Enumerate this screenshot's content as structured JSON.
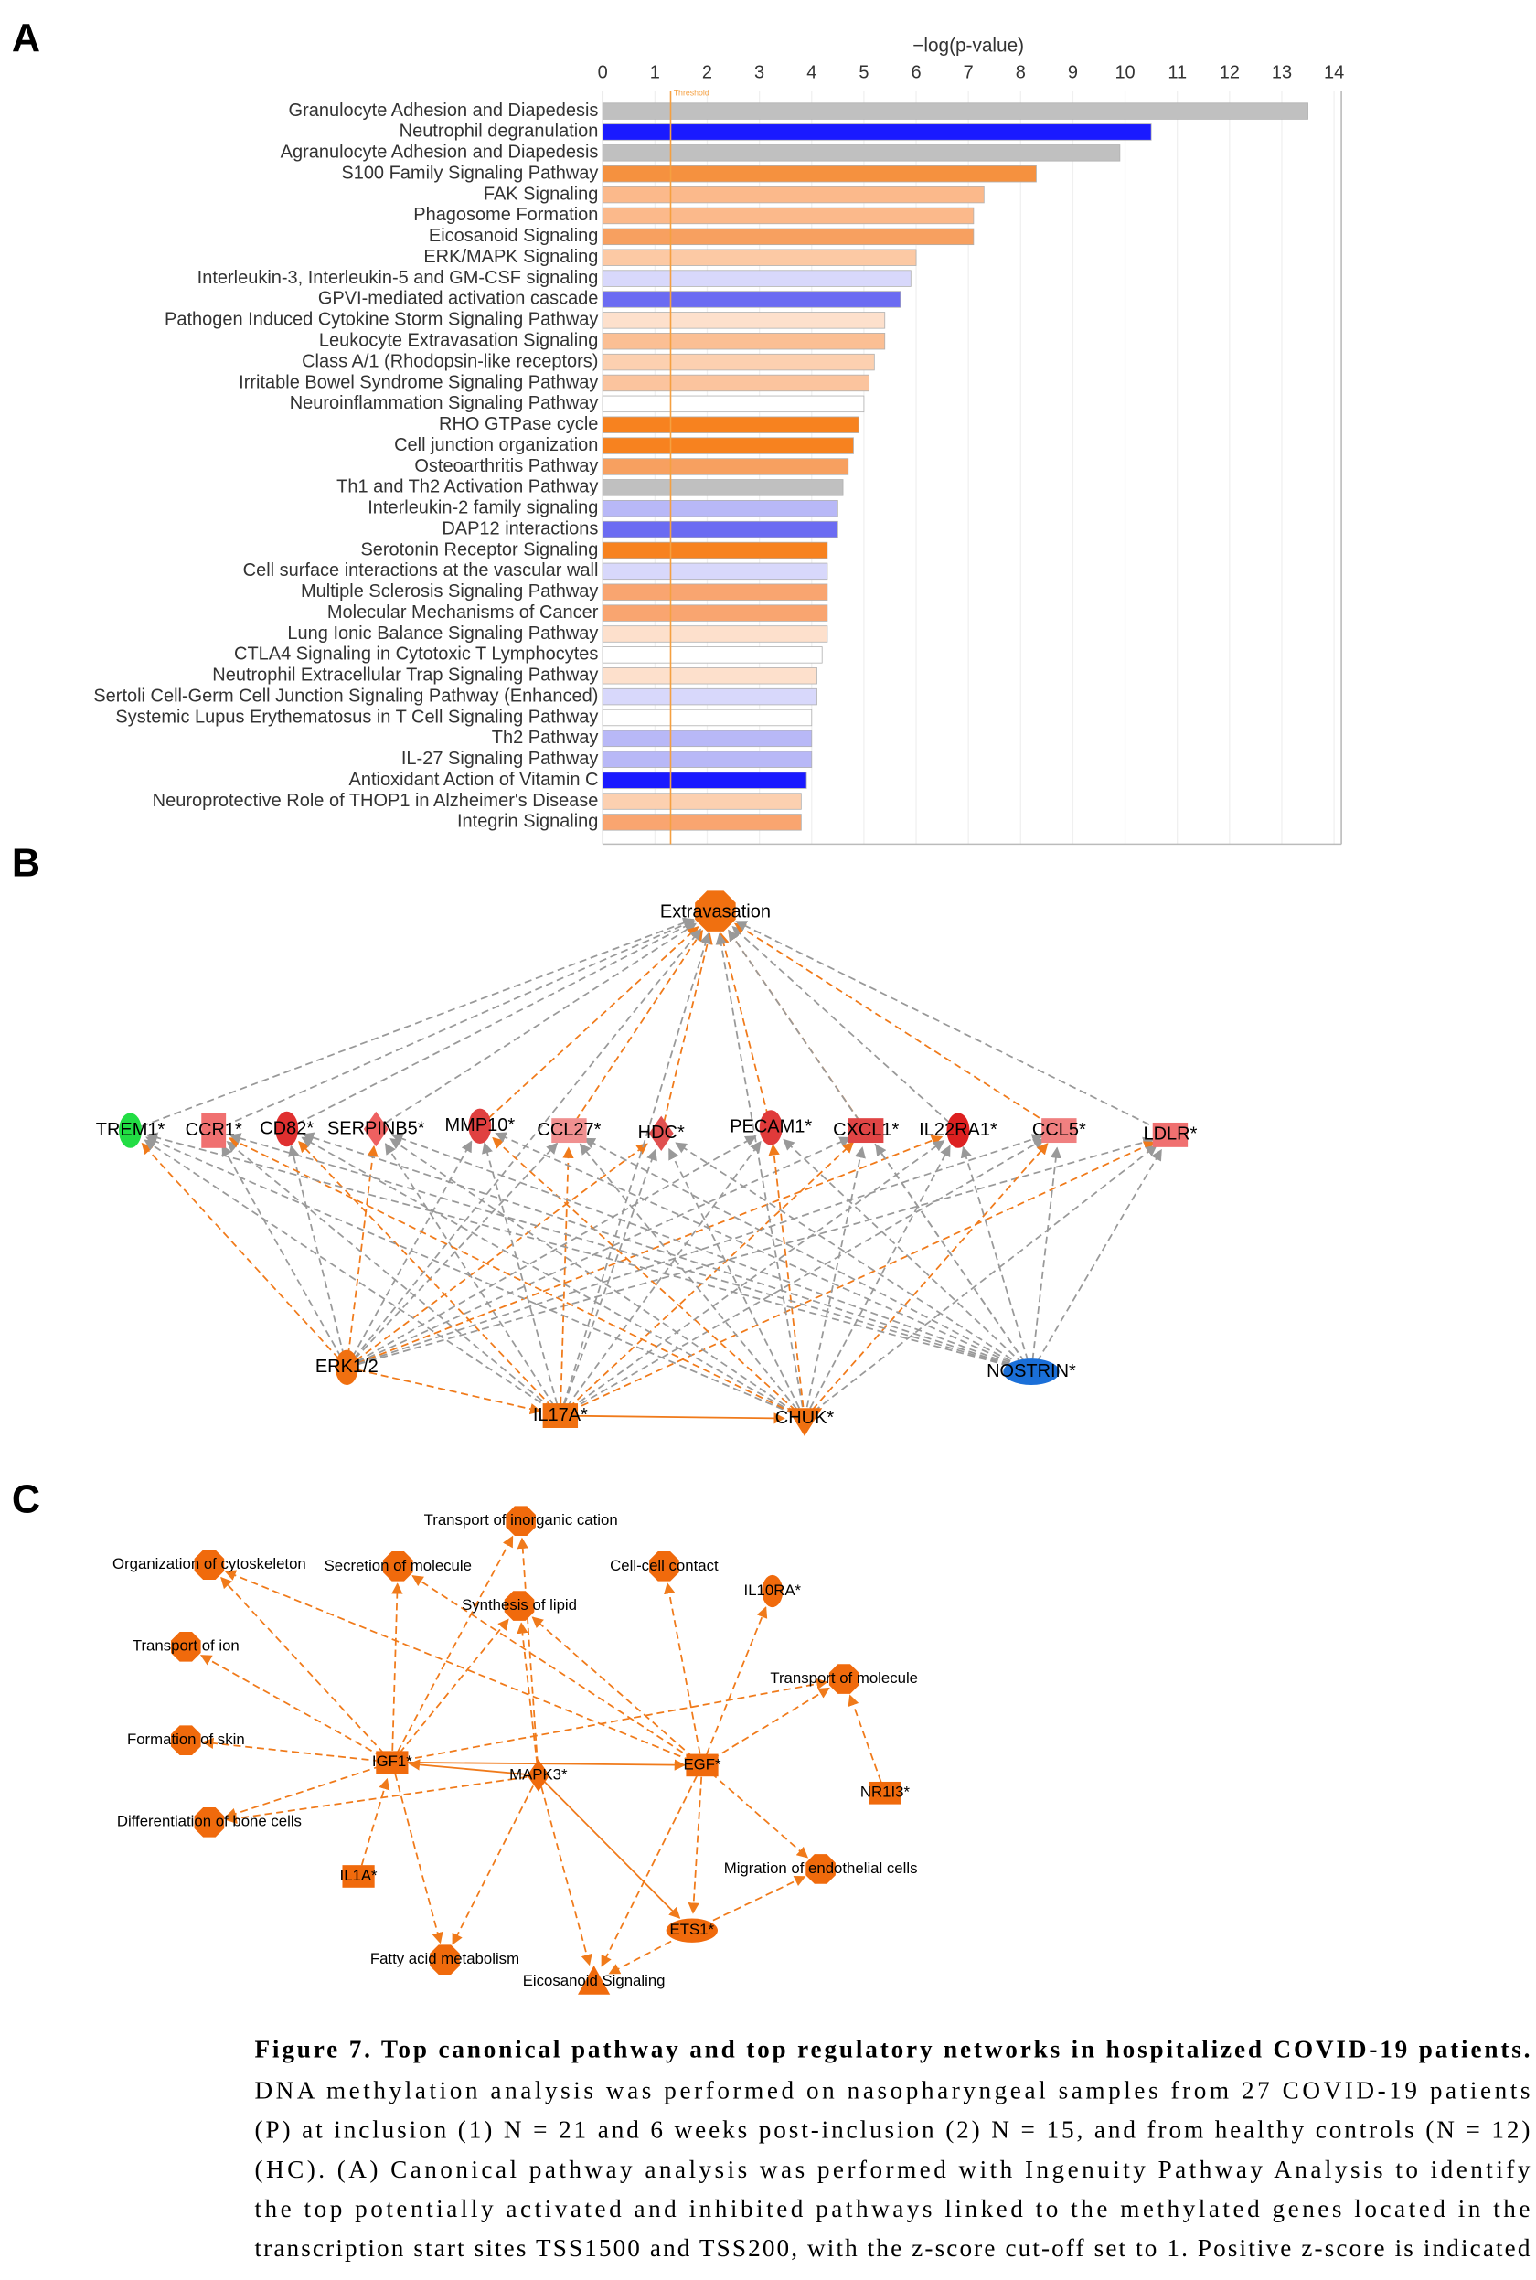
{
  "panel_labels": [
    "A",
    "B",
    "C"
  ],
  "chart_data": {
    "type": "bar",
    "orientation": "horizontal",
    "xlabel": "−log(p-value)",
    "threshold": 1.3,
    "threshold_label": "Threshold",
    "xlim": [
      0,
      14
    ],
    "xticks": [
      0,
      1,
      2,
      3,
      4,
      5,
      6,
      7,
      8,
      9,
      10,
      11,
      12,
      13,
      14
    ],
    "grid": true,
    "categories": [
      "Granulocyte Adhesion and Diapedesis",
      "Neutrophil degranulation",
      "Agranulocyte Adhesion and Diapedesis",
      "S100 Family Signaling Pathway",
      "FAK Signaling",
      "Phagosome Formation",
      "Eicosanoid Signaling",
      "ERK/MAPK Signaling",
      "Interleukin-3, Interleukin-5 and GM-CSF signaling",
      "GPVI-mediated activation cascade",
      "Pathogen Induced Cytokine Storm Signaling Pathway",
      "Leukocyte Extravasation Signaling",
      "Class A/1 (Rhodopsin-like receptors)",
      "Irritable Bowel Syndrome Signaling Pathway",
      "Neuroinflammation Signaling Pathway",
      "RHO GTPase cycle",
      "Cell junction organization",
      "Osteoarthritis Pathway",
      "Th1 and Th2 Activation Pathway",
      "Interleukin-2 family signaling",
      "DAP12 interactions",
      "Serotonin Receptor Signaling",
      "Cell surface interactions at the vascular wall",
      "Multiple Sclerosis Signaling Pathway",
      "Molecular Mechanisms of Cancer",
      "Lung Ionic Balance Signaling Pathway",
      "CTLA4 Signaling in Cytotoxic T Lymphocytes",
      "Neutrophil Extracellular Trap Signaling Pathway",
      "Sertoli Cell-Germ Cell Junction Signaling Pathway (Enhanced)",
      "Systemic Lupus Erythematosus in T Cell Signaling Pathway",
      "Th2 Pathway",
      "IL-27 Signaling Pathway",
      "Antioxidant Action of Vitamin C",
      "Neuroprotective Role of THOP1 in Alzheimer's Disease",
      "Integrin Signaling"
    ],
    "values": [
      13.5,
      10.5,
      9.9,
      8.3,
      7.3,
      7.1,
      7.1,
      6.0,
      5.9,
      5.7,
      5.4,
      5.4,
      5.2,
      5.1,
      5.0,
      4.9,
      4.8,
      4.7,
      4.6,
      4.5,
      4.5,
      4.3,
      4.3,
      4.3,
      4.3,
      4.3,
      4.2,
      4.1,
      4.1,
      4.0,
      4.0,
      4.0,
      3.9,
      3.8,
      3.8
    ],
    "colors": [
      "#c0c0c0",
      "#1a1aff",
      "#c0c0c0",
      "#f5913f",
      "#fbb98b",
      "#fbb98b",
      "#f7a060",
      "#fcc9a4",
      "#d8d8fb",
      "#6b6bf2",
      "#fde0cc",
      "#fbbf94",
      "#fcd0b0",
      "#fbc49e",
      "#ffffff",
      "#f7821f",
      "#f7821f",
      "#f7a060",
      "#c0c0c0",
      "#b8b8f7",
      "#6b6bf2",
      "#f7821f",
      "#d8d8fb",
      "#f9a570",
      "#f9a570",
      "#fde0cc",
      "#ffffff",
      "#fde0cc",
      "#d8d8fb",
      "#ffffff",
      "#b8b8f7",
      "#b8b8f7",
      "#1a1aff",
      "#fcd0b0",
      "#f9a570"
    ]
  },
  "network_b": {
    "target": "Extravasation",
    "regulated": [
      "TREM1*",
      "CCR1*",
      "CD82*",
      "SERPINB5*",
      "MMP10*",
      "CCL27*",
      "HDC*",
      "PECAM1*",
      "CXCL1*",
      "IL22RA1*",
      "CCL5*",
      "LDLR*"
    ],
    "regulators": [
      "ERK1/2",
      "IL17A*",
      "CHUK*",
      "NOSTRIN*"
    ]
  },
  "network_c": {
    "nodes": [
      "Transport of inorganic cation",
      "Organization of cytoskeleton",
      "Secretion of molecule",
      "Cell-cell contact",
      "IL10RA*",
      "Synthesis of lipid",
      "Transport of ion",
      "Transport of molecule",
      "Formation of skin",
      "IGF1*",
      "MAPK3*",
      "EGF*",
      "NR1I3*",
      "Differentiation of bone cells",
      "IL1A*",
      "Migration of endothelial cells",
      "ETS1*",
      "Fatty acid metabolism",
      "Eicosanoid Signaling"
    ]
  },
  "caption": {
    "title": "Figure 7. Top canonical pathway and top regulatory networks in hospitalized COVID-19 patients.",
    "lines": [
      "DNA methylation analysis was performed on nasopharyngeal samples from 27 COVID-19 patients",
      "(P) at inclusion (1) N = 21 and 6 weeks post-inclusion (2) N = 15, and from healthy controls (N = 12)",
      "(HC). (A) Canonical pathway analysis was performed with Ingenuity Pathway Analysis to identify",
      "the top potentially activated and inhibited pathways linked to the methylated genes located in the",
      "transcription start sites TSS1500 and TSS200, with the z-score cut-off set to 1. Positive z-score is indicated"
    ]
  }
}
